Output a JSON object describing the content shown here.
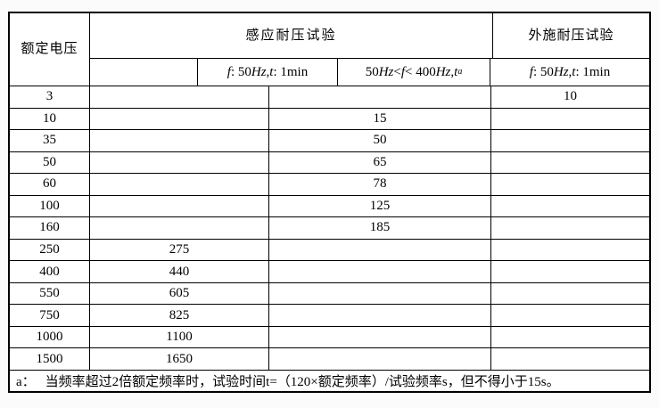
{
  "table": {
    "header": {
      "rated_voltage": "额定电压",
      "induced_test": "感应耐压试验",
      "applied_test": "外施耐压试验"
    },
    "formulas": {
      "induced_fixed": [
        {
          "t": "f",
          "i": 1
        },
        {
          "t": " : 50"
        },
        {
          "t": "Hz",
          "i": 1
        },
        {
          "t": ","
        },
        {
          "t": "t",
          "i": 1
        },
        {
          "t": " : 1min"
        }
      ],
      "induced_range": [
        {
          "t": "50"
        },
        {
          "t": "Hz",
          "i": 1
        },
        {
          "t": " < "
        },
        {
          "t": "f",
          "i": 1
        },
        {
          "t": " < 400"
        },
        {
          "t": "Hz",
          "i": 1
        },
        {
          "t": ","
        },
        {
          "t": "t",
          "i": 1
        },
        {
          "t": "a",
          "i": 1,
          "sup": 1
        }
      ],
      "applied_fixed": [
        {
          "t": "f",
          "i": 1
        },
        {
          "t": " : 50"
        },
        {
          "t": "Hz",
          "i": 1
        },
        {
          "t": ","
        },
        {
          "t": "t",
          "i": 1
        },
        {
          "t": " : 1min"
        }
      ]
    },
    "rows": [
      {
        "v": "3",
        "c2": "",
        "c3": "",
        "c4": "10"
      },
      {
        "v": "10",
        "c2": "",
        "c3": "15",
        "c4": ""
      },
      {
        "v": "35",
        "c2": "",
        "c3": "50",
        "c4": ""
      },
      {
        "v": "50",
        "c2": "",
        "c3": "65",
        "c4": ""
      },
      {
        "v": "60",
        "c2": "",
        "c3": "78",
        "c4": ""
      },
      {
        "v": "100",
        "c2": "",
        "c3": "125",
        "c4": ""
      },
      {
        "v": "160",
        "c2": "",
        "c3": "185",
        "c4": ""
      },
      {
        "v": "250",
        "c2": "275",
        "c3": "",
        "c4": ""
      },
      {
        "v": "400",
        "c2": "440",
        "c3": "",
        "c4": ""
      },
      {
        "v": "550",
        "c2": "605",
        "c3": "",
        "c4": ""
      },
      {
        "v": "750",
        "c2": "825",
        "c3": "",
        "c4": ""
      },
      {
        "v": "1000",
        "c2": "1100",
        "c3": "",
        "c4": ""
      },
      {
        "v": "1500",
        "c2": "1650",
        "c3": "",
        "c4": ""
      }
    ],
    "footnote": {
      "label": "a：",
      "text": "当频率超过2倍额定频率时，试验时间t=（120×额定频率）/试验频率s，但不得小于15s。"
    },
    "colors": {
      "border": "#000000",
      "text": "#000000",
      "background": "#ffffff"
    }
  }
}
